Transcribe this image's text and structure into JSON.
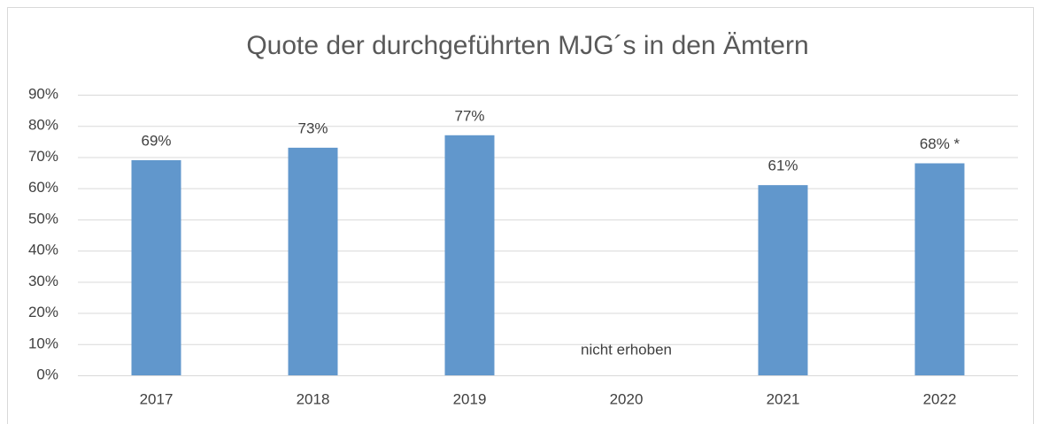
{
  "chart_data": {
    "type": "bar",
    "title": "Quote der durchgeführten MJG´s in den Ämtern",
    "categories": [
      "2017",
      "2018",
      "2019",
      "2020",
      "2021",
      "2022"
    ],
    "values": [
      69,
      73,
      77,
      null,
      61,
      68
    ],
    "value_labels": [
      "69%",
      "73%",
      "77%",
      "nicht erhoben",
      "61%",
      "68% *"
    ],
    "color": "#6197cc",
    "ylim": [
      0,
      90
    ],
    "yticks": [
      {
        "value": 0,
        "label": "0%"
      },
      {
        "value": 10,
        "label": "10%"
      },
      {
        "value": 20,
        "label": "20%"
      },
      {
        "value": 30,
        "label": "30%"
      },
      {
        "value": 40,
        "label": "40%"
      },
      {
        "value": 50,
        "label": "50%"
      },
      {
        "value": 60,
        "label": "60%"
      },
      {
        "value": 70,
        "label": "70%"
      },
      {
        "value": 80,
        "label": "80%"
      },
      {
        "value": 90,
        "label": "90%"
      }
    ],
    "grid": true
  }
}
